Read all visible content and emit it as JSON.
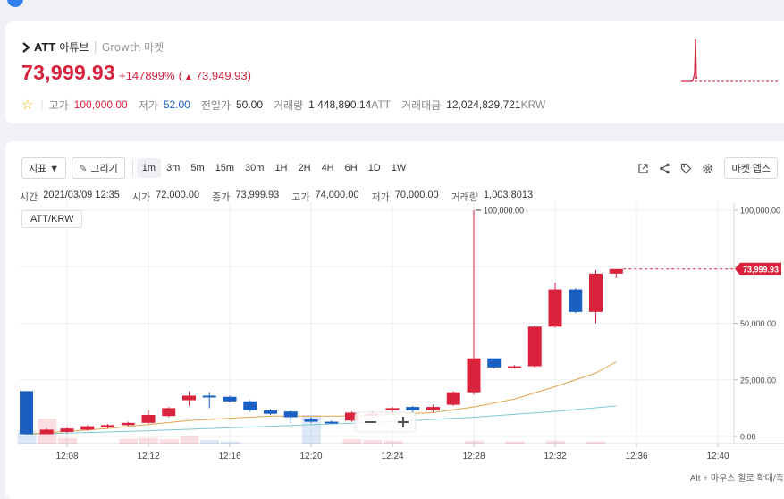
{
  "info": {
    "symbol": "ATT",
    "korean_name": "아튜브",
    "separator": "|",
    "market": "Growth 마켓",
    "price": "73,999.93",
    "change_pct": "+147899%",
    "change_abs_open": "(",
    "change_arrow": "▲",
    "change_abs": "73,949.93",
    "change_abs_close": ")",
    "stats": {
      "high_label": "고가",
      "high": "100,000.00",
      "low_label": "저가",
      "low": "52.00",
      "prev_label": "전일가",
      "prev": "50.00",
      "volume_label": "거래량",
      "volume": "1,448,890.14",
      "volume_unit": "ATT",
      "amount_label": "거래대금",
      "amount": "12,024,829,721",
      "amount_unit": "KRW"
    },
    "colors": {
      "up": "#d9233d",
      "down": "#1a5fc2"
    }
  },
  "toolbar": {
    "indicator_label": "지표 ▼",
    "draw_icon": "✎",
    "draw_label": "그리기",
    "timeframes": [
      "1m",
      "3m",
      "5m",
      "15m",
      "30m",
      "1H",
      "2H",
      "4H",
      "6H",
      "1D",
      "1W"
    ],
    "active_timeframe": "1m",
    "market_depth_label": "마켓 뎁스",
    "icons": [
      "popout-icon",
      "share-icon",
      "tag-icon",
      "settings-icon"
    ]
  },
  "ohlc": {
    "time_label": "시간",
    "time": "2021/03/09 12:35",
    "open_label": "시가",
    "open": "72,000.00",
    "close_label": "종가",
    "close": "73,999.93",
    "high_label": "고가",
    "high": "74,000.00",
    "low_label": "저가",
    "low": "70,000.00",
    "volume_label": "거래량",
    "volume": "1,003.8013"
  },
  "pair_label": "ATT/KRW",
  "hint": "Alt + 마우스 휠로 확대/축소",
  "chart_data": {
    "type": "candlestick",
    "ylim": [
      0,
      100000
    ],
    "yticks": [
      0,
      25000,
      50000,
      75000,
      100000
    ],
    "ytick_labels": [
      "0.00",
      "25,000.00",
      "50,000.00",
      "75,000.00",
      "100,000.00"
    ],
    "x_ticks": [
      "12:08",
      "12:12",
      "12:16",
      "12:20",
      "12:24",
      "12:28",
      "12:32",
      "12:36",
      "12:40"
    ],
    "x_tick_minutes": [
      8,
      12,
      16,
      20,
      24,
      28,
      32,
      36,
      40
    ],
    "current_price_label": "73,999.93",
    "current_price": 73999.93,
    "high_marker_label": "100,000.00",
    "high_marker_value": 100000,
    "high_marker_minute": 28,
    "candles": [
      {
        "m": 6,
        "o": 20000,
        "h": 20000,
        "c": 1000,
        "l": 1000
      },
      {
        "m": 7,
        "o": 1000,
        "h": 3500,
        "c": 3000,
        "l": 1000
      },
      {
        "m": 8,
        "o": 2000,
        "h": 4000,
        "c": 3500,
        "l": 1500
      },
      {
        "m": 9,
        "o": 3000,
        "h": 5000,
        "c": 4500,
        "l": 2500
      },
      {
        "m": 10,
        "o": 4000,
        "h": 5500,
        "c": 5000,
        "l": 3500
      },
      {
        "m": 11,
        "o": 5000,
        "h": 6500,
        "c": 6000,
        "l": 4500
      },
      {
        "m": 12,
        "o": 6000,
        "h": 11500,
        "c": 9500,
        "l": 5500
      },
      {
        "m": 13,
        "o": 9000,
        "h": 13000,
        "c": 12500,
        "l": 8500
      },
      {
        "m": 14,
        "o": 16000,
        "h": 20000,
        "c": 18000,
        "l": 13500
      },
      {
        "m": 15,
        "o": 18000,
        "h": 19500,
        "c": 17500,
        "l": 12500
      },
      {
        "m": 16,
        "o": 17500,
        "h": 18000,
        "c": 15500,
        "l": 15000
      },
      {
        "m": 17,
        "o": 15500,
        "h": 16000,
        "c": 11500,
        "l": 11000
      },
      {
        "m": 18,
        "o": 11500,
        "h": 12000,
        "c": 10000,
        "l": 9500
      },
      {
        "m": 19,
        "o": 11000,
        "h": 11500,
        "c": 8500,
        "l": 6000
      },
      {
        "m": 20,
        "o": 7500,
        "h": 8500,
        "c": 6500,
        "l": 6000
      },
      {
        "m": 21,
        "o": 6500,
        "h": 7000,
        "c": 6000,
        "l": 5500
      },
      {
        "m": 22,
        "o": 7000,
        "h": 11000,
        "c": 10500,
        "l": 6500
      },
      {
        "m": 23,
        "o": 9500,
        "h": 11000,
        "c": 10000,
        "l": 9000
      },
      {
        "m": 24,
        "o": 11500,
        "h": 13000,
        "c": 12500,
        "l": 9000
      },
      {
        "m": 25,
        "o": 13000,
        "h": 13500,
        "c": 11500,
        "l": 10000
      },
      {
        "m": 26,
        "o": 11500,
        "h": 14000,
        "c": 13000,
        "l": 10500
      },
      {
        "m": 27,
        "o": 14000,
        "h": 20000,
        "c": 19500,
        "l": 13500
      },
      {
        "m": 28,
        "o": 19500,
        "h": 100000,
        "c": 34500,
        "l": 18500
      },
      {
        "m": 29,
        "o": 34500,
        "h": 34500,
        "c": 30500,
        "l": 30000
      },
      {
        "m": 30,
        "o": 30500,
        "h": 31500,
        "c": 31000,
        "l": 30000
      },
      {
        "m": 31,
        "o": 31000,
        "h": 49000,
        "c": 48500,
        "l": 30500
      },
      {
        "m": 32,
        "o": 48500,
        "h": 68000,
        "c": 65000,
        "l": 48000
      },
      {
        "m": 33,
        "o": 65000,
        "h": 65500,
        "c": 55000,
        "l": 54500
      },
      {
        "m": 34,
        "o": 55000,
        "h": 73500,
        "c": 72000,
        "l": 50000
      },
      {
        "m": 35,
        "o": 72000,
        "h": 74000,
        "c": 73999.93,
        "l": 70000
      }
    ],
    "volume": [
      {
        "m": 6,
        "v": 0.18,
        "up": false
      },
      {
        "m": 7,
        "v": 0.35,
        "up": true
      },
      {
        "m": 8,
        "v": 0.08,
        "up": true
      },
      {
        "m": 11,
        "v": 0.07,
        "up": true
      },
      {
        "m": 12,
        "v": 0.08,
        "up": true
      },
      {
        "m": 13,
        "v": 0.06,
        "up": true
      },
      {
        "m": 14,
        "v": 0.1,
        "up": true
      },
      {
        "m": 15,
        "v": 0.05,
        "up": false
      },
      {
        "m": 16,
        "v": 0.03,
        "up": false
      },
      {
        "m": 20,
        "v": 0.4,
        "up": false
      },
      {
        "m": 22,
        "v": 0.06,
        "up": true
      },
      {
        "m": 23,
        "v": 0.05,
        "up": true
      },
      {
        "m": 24,
        "v": 0.04,
        "up": true
      },
      {
        "m": 28,
        "v": 0.04,
        "up": true
      },
      {
        "m": 30,
        "v": 0.03,
        "up": true
      },
      {
        "m": 32,
        "v": 0.04,
        "up": true
      },
      {
        "m": 34,
        "v": 0.03,
        "up": true
      }
    ],
    "ma_short": [
      [
        6,
        1000
      ],
      [
        10,
        3500
      ],
      [
        14,
        7000
      ],
      [
        18,
        9000
      ],
      [
        22,
        9000
      ],
      [
        26,
        10500
      ],
      [
        28,
        13000
      ],
      [
        30,
        16500
      ],
      [
        32,
        22000
      ],
      [
        34,
        28000
      ],
      [
        35,
        33000
      ]
    ],
    "ma_long": [
      [
        6,
        1000
      ],
      [
        12,
        2500
      ],
      [
        18,
        4500
      ],
      [
        24,
        6500
      ],
      [
        28,
        8500
      ],
      [
        32,
        11000
      ],
      [
        35,
        13500
      ]
    ]
  }
}
